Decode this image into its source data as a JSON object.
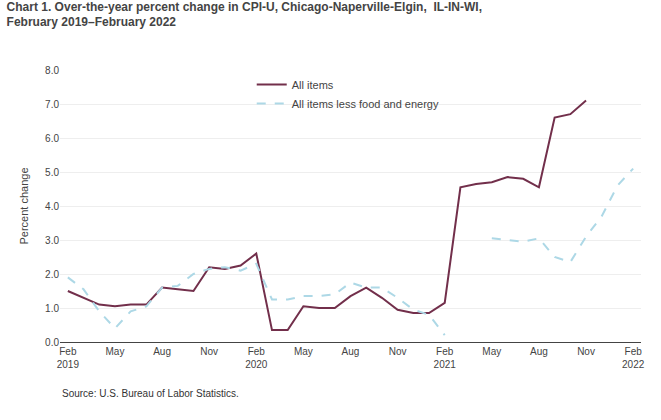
{
  "chart_data": {
    "type": "line",
    "title": "Chart 1. Over-the-year percent change in CPI-U, Chicago-Naperville-Elgin,  IL-IN-WI,",
    "subtitle": "February 2019–February 2022",
    "ylabel": "Percent change",
    "annotations": [
      "Source: U.S. Bureau of Labor Statistics."
    ],
    "categories": [
      "Feb\n2019",
      null,
      null,
      "May",
      null,
      null,
      "Aug",
      null,
      null,
      "Nov",
      null,
      null,
      "Feb\n2020",
      null,
      null,
      "May",
      null,
      null,
      "Aug",
      null,
      null,
      "Nov",
      null,
      null,
      "Feb\n2021",
      null,
      null,
      "May",
      null,
      null,
      "Aug",
      null,
      null,
      "Nov",
      null,
      null,
      "Feb\n2022"
    ],
    "series": [
      {
        "name": "All items",
        "color": "#722F4B",
        "line_style": "solid",
        "values": [
          1.5,
          1.3,
          1.1,
          1.05,
          1.1,
          1.1,
          1.6,
          1.55,
          1.5,
          2.2,
          2.15,
          2.25,
          2.6,
          0.35,
          0.35,
          1.05,
          1.0,
          1.0,
          1.35,
          1.6,
          1.3,
          0.95,
          0.85,
          0.85,
          1.15,
          4.55,
          4.65,
          4.7,
          4.85,
          4.8,
          4.55,
          6.6,
          6.7,
          7.1,
          null,
          null,
          null
        ]
      },
      {
        "name": "All items less food and energy",
        "color": "#ADD8E6",
        "line_style": "dashed",
        "values": [
          1.9,
          1.55,
          0.9,
          0.4,
          0.9,
          1.05,
          1.6,
          1.65,
          2.0,
          2.15,
          2.2,
          2.1,
          2.3,
          1.25,
          1.25,
          1.35,
          1.35,
          1.4,
          1.75,
          1.6,
          1.6,
          1.3,
          0.95,
          0.8,
          0.2,
          null,
          null,
          3.05,
          3.0,
          2.95,
          3.05,
          2.5,
          2.35,
          3.1,
          3.7,
          4.6,
          5.1
        ]
      }
    ],
    "ylim": [
      0.0,
      8.0
    ],
    "yticks": [
      {
        "value": 0,
        "label": "0.0"
      },
      {
        "value": 1,
        "label": "1.0"
      },
      {
        "value": 2,
        "label": "2.0"
      },
      {
        "value": 3,
        "label": "3.0"
      },
      {
        "value": 4,
        "label": "4.0"
      },
      {
        "value": 5,
        "label": "5.0"
      },
      {
        "value": 6,
        "label": "6.0"
      },
      {
        "value": 7,
        "label": "7.0"
      },
      {
        "value": 8,
        "label": "8.0"
      }
    ],
    "grid": "y",
    "legend": "top"
  }
}
